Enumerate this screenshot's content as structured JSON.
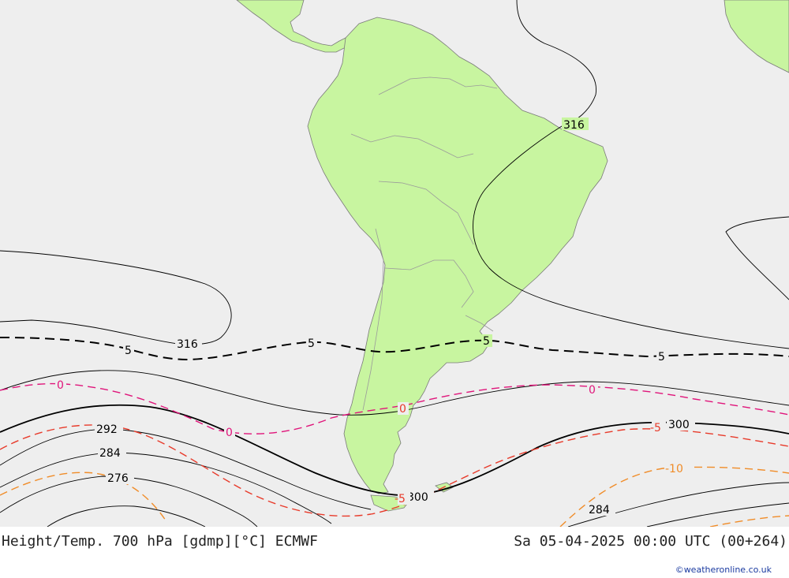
{
  "map": {
    "footer_left": "Height/Temp. 700 hPa [gdmp][°C] ECMWF",
    "footer_right": "Sa 05-04-2025 00:00 UTC (00+264)",
    "credit": "©weatheronline.co.uk",
    "colors": {
      "ocean": "#eeeeee",
      "land": "#c8f5a0",
      "border": "#9a9a9a",
      "height_contour": "#000000",
      "temp_0": "#e0147a",
      "temp_neg5": "#e83a2a",
      "temp_neg10": "#f08c28",
      "temp_5": "#000000"
    },
    "height_labels": {
      "h316_a": "316",
      "h316_b": "316",
      "h300_a": "300",
      "h300_b": "300",
      "h292": "292",
      "h284_a": "284",
      "h284_b": "284",
      "h276": "276"
    },
    "temp_labels": {
      "t5_a": "5",
      "t5_b": "5",
      "t5_c": "5",
      "t5_d": "5",
      "t0_a": "0",
      "t0_b": "0",
      "t0_c": "0",
      "t0_d": "0",
      "tm5_a": "-5",
      "tm5_b": "-5",
      "tm10": "-10"
    }
  }
}
